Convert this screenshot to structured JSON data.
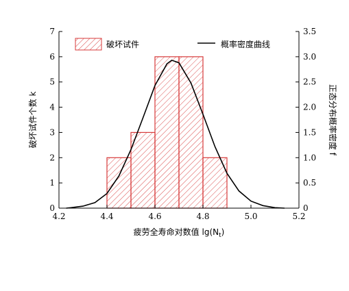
{
  "chart_data": {
    "type": "bar",
    "xlabel": "疲劳全寿命对数值 lg(N",
    "xlabel_sub": "t",
    "xlabel_close": ")",
    "ylabel": "破坏试件个数 k",
    "y2label": "正态分布概率密度 f",
    "xlim": [
      4.2,
      5.2
    ],
    "ylim": [
      0,
      7
    ],
    "y2lim": [
      0,
      3.5
    ],
    "x_ticks": [
      "4.2",
      "4.4",
      "4.6",
      "4.8",
      "5.0",
      "5.2"
    ],
    "y_ticks": [
      "0",
      "1",
      "2",
      "3",
      "4",
      "5",
      "6",
      "7"
    ],
    "y2_ticks": [
      "0",
      "0.5",
      "1.0",
      "1.5",
      "2.0",
      "2.5",
      "3.0",
      "3.5"
    ],
    "bins": [
      {
        "x0": 4.4,
        "x1": 4.5,
        "value": 2
      },
      {
        "x0": 4.5,
        "x1": 4.6,
        "value": 3
      },
      {
        "x0": 4.6,
        "x1": 4.7,
        "value": 6
      },
      {
        "x0": 4.7,
        "x1": 4.8,
        "value": 6
      },
      {
        "x0": 4.8,
        "x1": 4.9,
        "value": 2
      }
    ],
    "curve": {
      "x": [
        4.23,
        4.25,
        4.3,
        4.35,
        4.4,
        4.45,
        4.5,
        4.55,
        4.6,
        4.65,
        4.67,
        4.7,
        4.75,
        4.8,
        4.85,
        4.9,
        4.95,
        5.0,
        5.05,
        5.1,
        5.14
      ],
      "y": [
        0.0,
        0.01,
        0.04,
        0.11,
        0.29,
        0.64,
        1.16,
        1.79,
        2.43,
        2.86,
        2.93,
        2.88,
        2.48,
        1.86,
        1.22,
        0.69,
        0.34,
        0.14,
        0.05,
        0.01,
        0.0
      ]
    },
    "legend": [
      {
        "label": "破坏试件",
        "kind": "bar"
      },
      {
        "label": "概率密度曲线",
        "kind": "line"
      }
    ],
    "legend_position": "top",
    "bar_color": "#d73a3a",
    "curve_color": "#000000"
  }
}
